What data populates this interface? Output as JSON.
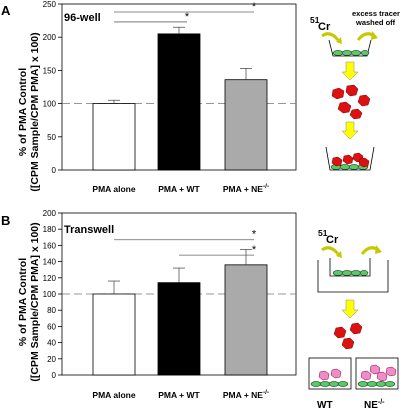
{
  "chart_data": [
    {
      "type": "bar",
      "panel_label": "A",
      "title": "96-well",
      "ylabel_line1": "% of PMA Control",
      "ylabel_line2": "([CPM Sample/CPM PMA] x 100)",
      "ylim": [
        0,
        250
      ],
      "yticks": [
        0,
        50,
        100,
        150,
        200,
        250
      ],
      "reference_line": 100,
      "categories": [
        "PMA alone",
        "PMA + WT",
        "PMA + NE-/-"
      ],
      "values": [
        100,
        205,
        136
      ],
      "errors": [
        5,
        10,
        17
      ],
      "colors": [
        "#ffffff",
        "#000000",
        "#aaaaaa"
      ],
      "significance": [
        {
          "from": 0,
          "to": 1,
          "y": 223,
          "label": "*"
        },
        {
          "from": 0,
          "to": 2,
          "y": 238,
          "label": "*"
        }
      ],
      "diagram": {
        "isotope_label": "Cr",
        "isotope_mass": "51",
        "note_line1": "excess tracer",
        "note_line2": "washed off"
      }
    },
    {
      "type": "bar",
      "panel_label": "B",
      "title": "Transwell",
      "ylabel_line1": "% of PMA Control",
      "ylabel_line2": "([CPM Sample/CPM PMA] x 100)",
      "ylim": [
        0,
        200
      ],
      "yticks": [
        0,
        20,
        40,
        60,
        80,
        100,
        120,
        140,
        160,
        180,
        200
      ],
      "reference_line": 100,
      "categories": [
        "PMA alone",
        "PMA + WT",
        "PMA + NE-/-"
      ],
      "values": [
        100,
        114,
        136
      ],
      "errors": [
        16,
        18,
        19
      ],
      "colors": [
        "#ffffff",
        "#000000",
        "#aaaaaa"
      ],
      "significance": [
        {
          "from": 0,
          "to": 2,
          "y": 167,
          "label": "*"
        },
        {
          "from": 1,
          "to": 2,
          "y": 148,
          "label": "*"
        }
      ],
      "diagram": {
        "isotope_label": "Cr",
        "isotope_mass": "51",
        "well_label_left": "WT",
        "well_label_right": "NE",
        "well_label_right_sup": "-/-"
      }
    }
  ]
}
